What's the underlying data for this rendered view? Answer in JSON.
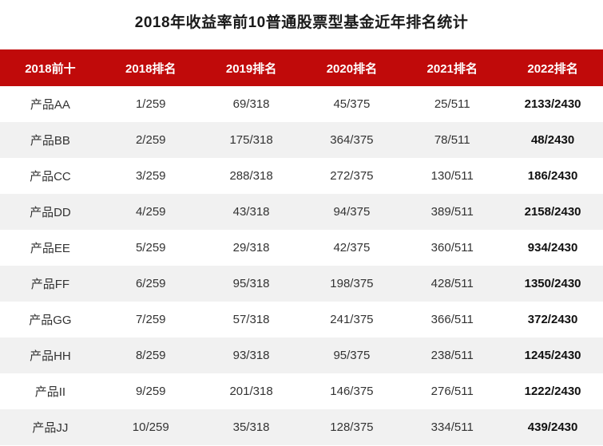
{
  "page_title": "2018年收益率前10普通股票型基金近年排名统计",
  "colors": {
    "header_bg": "#c00a0a",
    "header_text": "#ffffff",
    "row_alt_bg": "#f1f1f1",
    "cell_text": "#333333",
    "last_col_text": "#111111",
    "title_text": "#1a1a1a"
  },
  "chart_data": {
    "type": "table",
    "title": "2018年收益率前10普通股票型基金近年排名统计",
    "columns": [
      "2018前十",
      "2018排名",
      "2019排名",
      "2020排名",
      "2021排名",
      "2022排名"
    ],
    "rows": [
      [
        "产品AA",
        "1/259",
        "69/318",
        "45/375",
        "25/511",
        "2133/2430"
      ],
      [
        "产品BB",
        "2/259",
        "175/318",
        "364/375",
        "78/511",
        "48/2430"
      ],
      [
        "产品CC",
        "3/259",
        "288/318",
        "272/375",
        "130/511",
        "186/2430"
      ],
      [
        "产品DD",
        "4/259",
        "43/318",
        "94/375",
        "389/511",
        "2158/2430"
      ],
      [
        "产品EE",
        "5/259",
        "29/318",
        "42/375",
        "360/511",
        "934/2430"
      ],
      [
        "产品FF",
        "6/259",
        "95/318",
        "198/375",
        "428/511",
        "1350/2430"
      ],
      [
        "产品GG",
        "7/259",
        "57/318",
        "241/375",
        "366/511",
        "372/2430"
      ],
      [
        "产品HH",
        "8/259",
        "93/318",
        "95/375",
        "238/511",
        "1245/2430"
      ],
      [
        "产品II",
        "9/259",
        "201/318",
        "146/375",
        "276/511",
        "1222/2430"
      ],
      [
        "产品JJ",
        "10/259",
        "35/318",
        "128/375",
        "334/511",
        "439/2430"
      ]
    ]
  }
}
